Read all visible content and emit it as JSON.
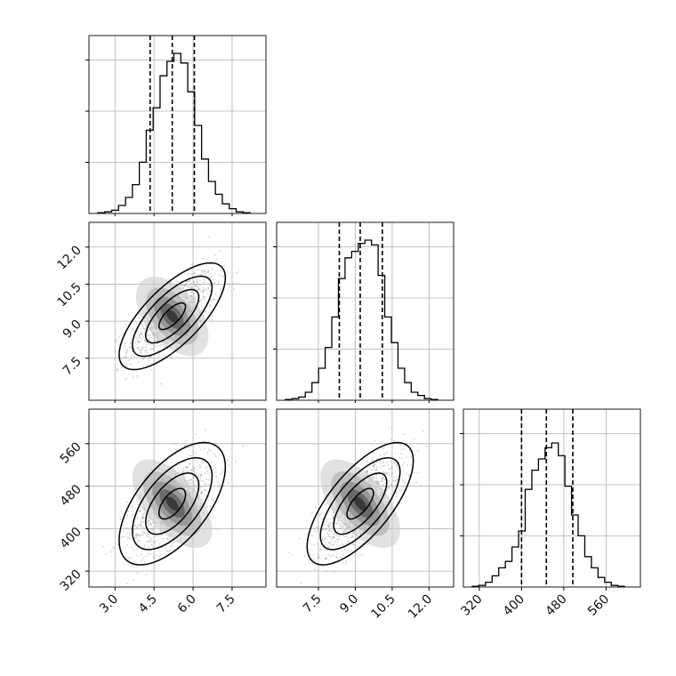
{
  "chart_data": {
    "type": "corner",
    "params": [
      {
        "ticks": [
          "3.0",
          "4.5",
          "6.0",
          "7.5"
        ],
        "tick_values": [
          3.0,
          4.5,
          6.0,
          7.5
        ],
        "range": [
          2.0,
          8.8
        ],
        "quantiles": [
          4.35,
          5.2,
          6.05
        ]
      },
      {
        "ticks": [
          "7.5",
          "9.0",
          "10.5",
          "12.0"
        ],
        "tick_values": [
          7.5,
          9.0,
          10.5,
          12.0
        ],
        "range": [
          5.8,
          13.0
        ],
        "quantiles": [
          8.35,
          9.2,
          10.1
        ]
      },
      {
        "ticks": [
          "320",
          "400",
          "480",
          "560"
        ],
        "tick_values": [
          320,
          400,
          480,
          560
        ],
        "range": [
          290,
          625
        ],
        "quantiles": [
          400,
          447,
          497
        ]
      }
    ],
    "histograms": [
      [
        0.005,
        0.01,
        0.02,
        0.05,
        0.1,
        0.18,
        0.32,
        0.52,
        0.66,
        0.86,
        0.95,
        1.0,
        0.94,
        0.76,
        0.55,
        0.34,
        0.2,
        0.12,
        0.06,
        0.03,
        0.01,
        0.005
      ],
      [
        0.005,
        0.01,
        0.02,
        0.05,
        0.11,
        0.2,
        0.33,
        0.52,
        0.76,
        0.89,
        0.93,
        0.98,
        1.0,
        0.97,
        0.78,
        0.52,
        0.36,
        0.2,
        0.11,
        0.05,
        0.03,
        0.01,
        0.005
      ],
      [
        0.005,
        0.01,
        0.03,
        0.07,
        0.12,
        0.16,
        0.25,
        0.35,
        0.61,
        0.73,
        0.8,
        0.87,
        0.9,
        0.82,
        0.63,
        0.45,
        0.32,
        0.19,
        0.12,
        0.06,
        0.03,
        0.01,
        0.005
      ]
    ],
    "pairs": [
      {
        "x": 0,
        "y": 1,
        "mean": [
          5.2,
          9.2
        ],
        "sd": [
          0.85,
          0.9
        ],
        "corr": 0.72
      },
      {
        "x": 0,
        "y": 2,
        "mean": [
          5.2,
          447
        ],
        "sd": [
          0.85,
          48
        ],
        "corr": 0.6
      },
      {
        "x": 1,
        "y": 2,
        "mean": [
          9.2,
          447
        ],
        "sd": [
          0.9,
          48
        ],
        "corr": 0.7
      }
    ],
    "contour_levels_sigma": [
      0.5,
      1.0,
      1.5,
      2.0
    ],
    "colors": {
      "line": "#000000",
      "grid": "#b0b0b0",
      "scatter": "#9a9a9a"
    }
  }
}
